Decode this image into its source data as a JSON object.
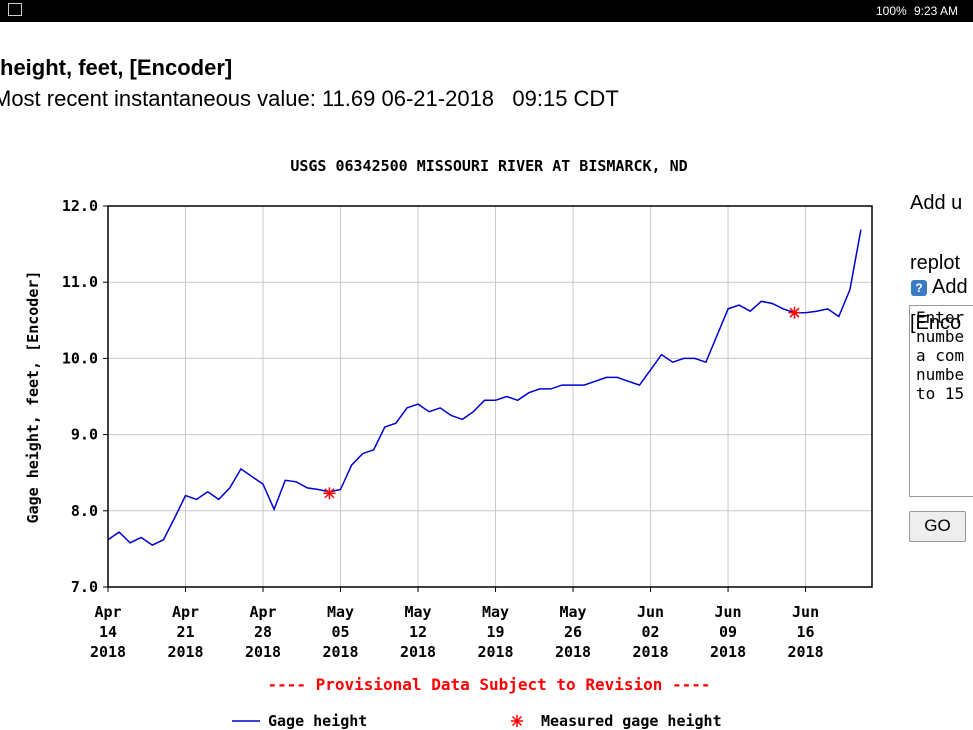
{
  "status_bar": {
    "battery": "100%",
    "time": "9:23 AM"
  },
  "header": {
    "title": "height, feet, [Encoder]",
    "subtitle": "Most recent instantaneous value: 11.69 06-21-2018   09:15 CDT"
  },
  "side_panel": {
    "lines": [
      "Add u",
      "replot",
      "[Enco"
    ],
    "section": "Add",
    "textarea": [
      "Enter",
      "numbe",
      "a com",
      "numbe",
      "to 15"
    ],
    "button": "GO"
  },
  "chart_data": {
    "type": "line",
    "title": "USGS 06342500 MISSOURI RIVER AT BISMARCK, ND",
    "y_label": "Gage height, feet, [Encoder]",
    "note": "---- Provisional Data Subject to Revision ----",
    "x": [
      "2018-04-14",
      "2018-04-15",
      "2018-04-16",
      "2018-04-17",
      "2018-04-18",
      "2018-04-19",
      "2018-04-20",
      "2018-04-21",
      "2018-04-22",
      "2018-04-23",
      "2018-04-24",
      "2018-04-25",
      "2018-04-26",
      "2018-04-27",
      "2018-04-28",
      "2018-04-29",
      "2018-04-30",
      "2018-05-01",
      "2018-05-02",
      "2018-05-03",
      "2018-05-04",
      "2018-05-05",
      "2018-05-06",
      "2018-05-07",
      "2018-05-08",
      "2018-05-09",
      "2018-05-10",
      "2018-05-11",
      "2018-05-12",
      "2018-05-13",
      "2018-05-14",
      "2018-05-15",
      "2018-05-16",
      "2018-05-17",
      "2018-05-18",
      "2018-05-19",
      "2018-05-20",
      "2018-05-21",
      "2018-05-22",
      "2018-05-23",
      "2018-05-24",
      "2018-05-25",
      "2018-05-26",
      "2018-05-27",
      "2018-05-28",
      "2018-05-29",
      "2018-05-30",
      "2018-05-31",
      "2018-06-01",
      "2018-06-02",
      "2018-06-03",
      "2018-06-04",
      "2018-06-05",
      "2018-06-06",
      "2018-06-07",
      "2018-06-08",
      "2018-06-09",
      "2018-06-10",
      "2018-06-11",
      "2018-06-12",
      "2018-06-13",
      "2018-06-14",
      "2018-06-15",
      "2018-06-16",
      "2018-06-17",
      "2018-06-18",
      "2018-06-19",
      "2018-06-20",
      "2018-06-21"
    ],
    "series": [
      {
        "name": "Gage height",
        "color": "#0000cc",
        "values": [
          7.62,
          7.72,
          7.58,
          7.65,
          7.55,
          7.62,
          7.9,
          8.2,
          8.15,
          8.25,
          8.15,
          8.3,
          8.55,
          8.45,
          8.35,
          8.02,
          8.4,
          8.38,
          8.3,
          8.28,
          8.25,
          8.28,
          8.6,
          8.75,
          8.8,
          9.1,
          9.15,
          9.35,
          9.4,
          9.3,
          9.35,
          9.25,
          9.2,
          9.3,
          9.45,
          9.45,
          9.5,
          9.45,
          9.55,
          9.6,
          9.6,
          9.65,
          9.65,
          9.65,
          9.7,
          9.75,
          9.75,
          9.7,
          9.65,
          9.85,
          10.05,
          9.95,
          10.0,
          10.0,
          9.95,
          10.3,
          10.65,
          10.7,
          10.62,
          10.75,
          10.72,
          10.65,
          10.6,
          10.6,
          10.62,
          10.65,
          10.55,
          10.9,
          11.69
        ]
      },
      {
        "name": "Measured gage height",
        "color": "#ff0000",
        "marker": "asterisk",
        "x": [
          "2018-05-04",
          "2018-06-15"
        ],
        "values": [
          8.23,
          10.6
        ]
      }
    ],
    "xlim": [
      "2018-04-14",
      "2018-06-22"
    ],
    "xticks": [
      {
        "value": "2018-04-14",
        "label": "Apr\n14\n2018"
      },
      {
        "value": "2018-04-21",
        "label": "Apr\n21\n2018"
      },
      {
        "value": "2018-04-28",
        "label": "Apr\n28\n2018"
      },
      {
        "value": "2018-05-05",
        "label": "May\n05\n2018"
      },
      {
        "value": "2018-05-12",
        "label": "May\n12\n2018"
      },
      {
        "value": "2018-05-19",
        "label": "May\n19\n2018"
      },
      {
        "value": "2018-05-26",
        "label": "May\n26\n2018"
      },
      {
        "value": "2018-06-02",
        "label": "Jun\n02\n2018"
      },
      {
        "value": "2018-06-09",
        "label": "Jun\n09\n2018"
      },
      {
        "value": "2018-06-16",
        "label": "Jun\n16\n2018"
      }
    ],
    "ylim": [
      7,
      12
    ],
    "yticks": [
      {
        "value": 7,
        "label": "7.0"
      },
      {
        "value": 8,
        "label": "8.0"
      },
      {
        "value": 9,
        "label": "9.0"
      },
      {
        "value": 10,
        "label": "10.0"
      },
      {
        "value": 11,
        "label": "11.0"
      },
      {
        "value": 12,
        "label": "12.0"
      }
    ],
    "grid": true
  }
}
